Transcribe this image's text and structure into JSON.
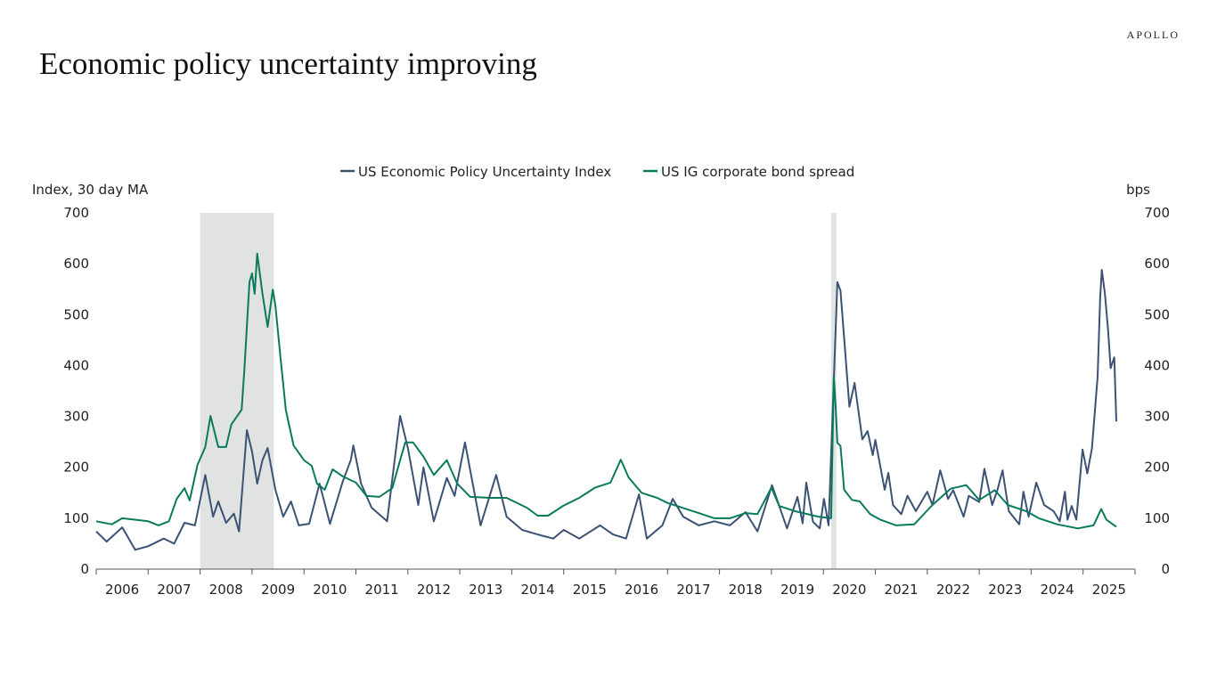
{
  "header": {
    "title": "Economic policy uncertainty improving",
    "brand": "APOLLO"
  },
  "colors": {
    "epu": "#3b5275",
    "ig": "#0a7a5c",
    "recession": "#e1e3e3",
    "axis": "#555555"
  },
  "chart_data": {
    "type": "line",
    "title": "",
    "ylabel_left": "Index, 30 day MA",
    "ylabel_right": "bps",
    "ylim_left": [
      0,
      700
    ],
    "ylim_right": [
      0,
      700
    ],
    "yticks": [
      0,
      100,
      200,
      300,
      400,
      500,
      600,
      700
    ],
    "xlim": [
      2006,
      2026
    ],
    "xticks": [
      "2006",
      "2007",
      "2008",
      "2009",
      "2010",
      "2011",
      "2012",
      "2013",
      "2014",
      "2015",
      "2016",
      "2017",
      "2018",
      "2019",
      "2020",
      "2021",
      "2022",
      "2023",
      "2024",
      "2025"
    ],
    "legend_position": "top-center",
    "grid": false,
    "shaded_periods": [
      [
        2008.0,
        2009.42
      ],
      [
        2020.15,
        2020.25
      ]
    ],
    "series": [
      {
        "name": "US Economic Policy Uncertainty Index",
        "axis": "left",
        "x": [
          2006.0,
          2006.2,
          2006.5,
          2006.75,
          2007.0,
          2007.3,
          2007.5,
          2007.7,
          2007.9,
          2008.1,
          2008.25,
          2008.35,
          2008.5,
          2008.65,
          2008.75,
          2008.9,
          2009.0,
          2009.1,
          2009.2,
          2009.3,
          2009.45,
          2009.6,
          2009.75,
          2009.9,
          2010.1,
          2010.3,
          2010.5,
          2010.75,
          2010.9,
          2010.95,
          2011.1,
          2011.3,
          2011.6,
          2011.85,
          2012.0,
          2012.2,
          2012.3,
          2012.5,
          2012.75,
          2012.9,
          2013.1,
          2013.4,
          2013.7,
          2013.9,
          2014.2,
          2014.5,
          2014.8,
          2015.0,
          2015.3,
          2015.7,
          2015.95,
          2016.2,
          2016.45,
          2016.6,
          2016.9,
          2017.1,
          2017.3,
          2017.6,
          2017.9,
          2018.2,
          2018.5,
          2018.73,
          2019.01,
          2019.3,
          2019.5,
          2019.6,
          2019.67,
          2019.8,
          2019.93,
          2020.01,
          2020.1,
          2020.27,
          2020.33,
          2020.5,
          2020.6,
          2020.75,
          2020.85,
          2020.95,
          2021.0,
          2021.18,
          2021.25,
          2021.34,
          2021.5,
          2021.62,
          2021.78,
          2022.0,
          2022.1,
          2022.25,
          2022.4,
          2022.5,
          2022.7,
          2022.8,
          2023.0,
          2023.1,
          2023.25,
          2023.35,
          2023.45,
          2023.57,
          2023.77,
          2023.85,
          2023.95,
          2024.1,
          2024.25,
          2024.43,
          2024.55,
          2024.65,
          2024.7,
          2024.78,
          2024.87,
          2024.99,
          2025.08,
          2025.17,
          2025.28,
          2025.33,
          2025.36,
          2025.42,
          2025.48,
          2025.53,
          2025.6,
          2025.64
        ],
        "values": [
          74,
          54,
          82,
          38,
          45,
          60,
          50,
          91,
          86,
          185,
          103,
          133,
          91,
          109,
          74,
          273,
          231,
          168,
          214,
          238,
          156,
          103,
          133,
          86,
          89,
          168,
          89,
          173,
          214,
          243,
          168,
          121,
          94,
          301,
          238,
          126,
          200,
          94,
          179,
          144,
          249,
          86,
          185,
          103,
          77,
          68,
          60,
          77,
          60,
          86,
          68,
          60,
          147,
          60,
          86,
          138,
          103,
          86,
          94,
          86,
          112,
          74,
          165,
          80,
          142,
          90,
          170,
          93,
          80,
          138,
          86,
          564,
          547,
          319,
          366,
          255,
          271,
          224,
          254,
          156,
          189,
          126,
          108,
          144,
          114,
          152,
          126,
          194,
          138,
          155,
          103,
          144,
          132,
          197,
          126,
          155,
          194,
          114,
          88,
          152,
          103,
          170,
          126,
          114,
          94,
          152,
          97,
          124,
          97,
          235,
          188,
          237,
          378,
          535,
          588,
          541,
          471,
          395,
          416,
          290
        ]
      },
      {
        "name": "US IG corporate bond spread",
        "axis": "right",
        "x": [
          2006.0,
          2006.3,
          2006.5,
          2007.0,
          2007.2,
          2007.4,
          2007.55,
          2007.7,
          2007.8,
          2007.95,
          2008.1,
          2008.2,
          2008.35,
          2008.5,
          2008.6,
          2008.8,
          2008.85,
          2008.95,
          2009.0,
          2009.05,
          2009.1,
          2009.2,
          2009.3,
          2009.4,
          2009.45,
          2009.55,
          2009.65,
          2009.8,
          2010.0,
          2010.15,
          2010.25,
          2010.4,
          2010.55,
          2010.75,
          2011.0,
          2011.2,
          2011.45,
          2011.7,
          2011.85,
          2011.95,
          2012.1,
          2012.3,
          2012.5,
          2012.75,
          2012.95,
          2013.2,
          2013.6,
          2013.9,
          2014.3,
          2014.5,
          2014.7,
          2015.0,
          2015.3,
          2015.6,
          2015.9,
          2016.1,
          2016.25,
          2016.5,
          2016.8,
          2017.0,
          2017.3,
          2017.6,
          2017.9,
          2018.2,
          2018.5,
          2018.73,
          2019.0,
          2019.15,
          2019.45,
          2019.9,
          2020.15,
          2020.2,
          2020.23,
          2020.27,
          2020.33,
          2020.4,
          2020.55,
          2020.7,
          2020.9,
          2021.1,
          2021.4,
          2021.75,
          2022.1,
          2022.45,
          2022.75,
          2023.0,
          2023.3,
          2023.55,
          2023.9,
          2024.15,
          2024.5,
          2024.9,
          2025.2,
          2025.35,
          2025.45,
          2025.64
        ],
        "values": [
          94,
          88,
          100,
          94,
          86,
          94,
          138,
          159,
          135,
          205,
          240,
          301,
          240,
          240,
          284,
          313,
          389,
          564,
          581,
          541,
          620,
          541,
          476,
          549,
          518,
          413,
          313,
          243,
          214,
          203,
          168,
          156,
          196,
          182,
          170,
          144,
          142,
          159,
          214,
          249,
          249,
          221,
          185,
          214,
          168,
          142,
          140,
          140,
          120,
          105,
          105,
          125,
          140,
          160,
          170,
          215,
          180,
          150,
          140,
          130,
          120,
          110,
          100,
          100,
          110,
          108,
          160,
          124,
          114,
          103,
          100,
          378,
          331,
          248,
          242,
          156,
          136,
          133,
          108,
          97,
          86,
          88,
          126,
          158,
          165,
          136,
          155,
          126,
          114,
          100,
          88,
          80,
          86,
          118,
          97,
          83
        ]
      }
    ]
  }
}
